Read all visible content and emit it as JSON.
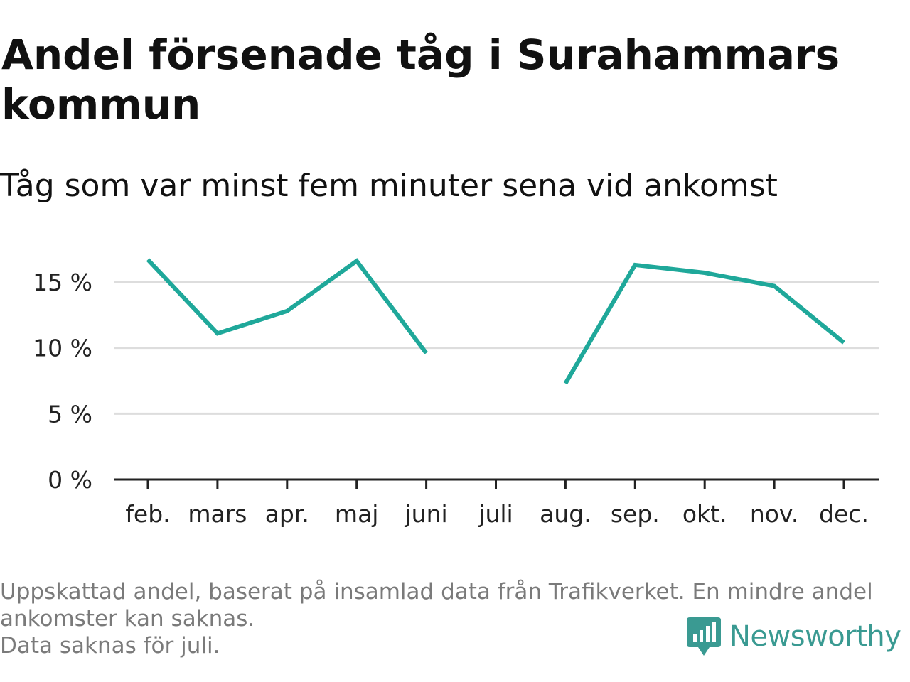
{
  "title": "Andel försenade tåg i Surahammars kommun",
  "subtitle": "Tåg som var minst fem minuter sena vid ankomst",
  "footnote": {
    "line1": "Uppskattad andel, baserat på insamlad data från Trafikverket. En mindre andel",
    "line2": "ankomster kan saknas.",
    "line3": "Data saknas för juli."
  },
  "brand": {
    "name": "Newsworthy",
    "icon": "newsworthy-logo-icon",
    "color": "#3a9a92"
  },
  "chart_data": {
    "type": "line",
    "categories": [
      "feb.",
      "mars",
      "apr.",
      "maj",
      "juni",
      "juli",
      "aug.",
      "sep.",
      "okt.",
      "nov.",
      "dec."
    ],
    "series": [
      {
        "values": [
          16.7,
          11.1,
          12.8,
          16.6,
          9.6,
          null,
          7.3,
          16.3,
          15.7,
          14.7,
          10.4
        ],
        "color": "#1fa89a"
      }
    ],
    "yticks": [
      {
        "value": 0,
        "label": "0 %"
      },
      {
        "value": 5,
        "label": "5 %"
      },
      {
        "value": 10,
        "label": "10 %"
      },
      {
        "value": 15,
        "label": "15 %"
      }
    ],
    "ylim": [
      0,
      18
    ],
    "grid": true,
    "grid_color": "#dddddd",
    "axis_color": "#222222"
  }
}
